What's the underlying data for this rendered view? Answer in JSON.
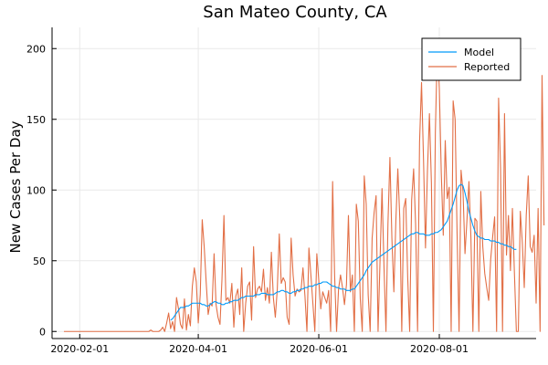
{
  "chart_data": {
    "type": "line",
    "title": "San Mateo County, CA",
    "xlabel": "",
    "ylabel": "New Cases Per Day",
    "x_start": "2020-01-24",
    "x_end": "2020-09-16",
    "xlim": [
      "2020-01-18",
      "2020-09-19"
    ],
    "ylim": [
      -5,
      215
    ],
    "xticks": [
      "2020-02-01",
      "2020-04-01",
      "2020-06-01",
      "2020-08-01"
    ],
    "yticks": [
      0,
      50,
      100,
      150,
      200
    ],
    "grid": true,
    "legend": "top-right",
    "series": [
      {
        "name": "Model",
        "color": "#009AFA",
        "x_start": "2020-03-18",
        "values": [
          8,
          9,
          11,
          13,
          15,
          17,
          17,
          17,
          18,
          18,
          19,
          20,
          20,
          20,
          20,
          20,
          19,
          19,
          18,
          18,
          19,
          20,
          21,
          21,
          20,
          20,
          19,
          19,
          20,
          20,
          21,
          21,
          22,
          22,
          22,
          23,
          24,
          24,
          25,
          25,
          25,
          25,
          25,
          26,
          26,
          26,
          27,
          27,
          27,
          26,
          26,
          26,
          26,
          27,
          28,
          28,
          29,
          29,
          28,
          28,
          27,
          27,
          28,
          28,
          29,
          29,
          30,
          30,
          31,
          31,
          32,
          32,
          32,
          33,
          33,
          34,
          34,
          35,
          35,
          35,
          34,
          33,
          32,
          32,
          31,
          31,
          30,
          30,
          30,
          29,
          29,
          29,
          30,
          30,
          32,
          34,
          36,
          38,
          40,
          43,
          45,
          47,
          49,
          50,
          51,
          52,
          53,
          54,
          55,
          56,
          57,
          58,
          59,
          60,
          61,
          62,
          63,
          64,
          65,
          66,
          67,
          68,
          69,
          69,
          70,
          70,
          69,
          69,
          69,
          68,
          68,
          68,
          69,
          69,
          70,
          70,
          71,
          72,
          74,
          76,
          78,
          82,
          86,
          90,
          95,
          100,
          103,
          104,
          103,
          98,
          92,
          85,
          80,
          75,
          71,
          68,
          67,
          66,
          66,
          65,
          65,
          65,
          64,
          64,
          64,
          63,
          63,
          62,
          62,
          61,
          61,
          60,
          60,
          59,
          58,
          58
        ]
      },
      {
        "name": "Reported",
        "color": "#E26F46",
        "values": [
          0,
          0,
          0,
          0,
          0,
          0,
          0,
          0,
          0,
          0,
          0,
          0,
          0,
          0,
          0,
          0,
          0,
          0,
          0,
          0,
          0,
          0,
          0,
          0,
          0,
          0,
          0,
          0,
          0,
          0,
          0,
          0,
          0,
          0,
          0,
          0,
          0,
          0,
          0,
          0,
          0,
          0,
          0,
          0,
          1,
          0,
          0,
          0,
          0,
          1,
          3,
          0,
          6,
          13,
          2,
          7,
          0,
          24,
          16,
          5,
          2,
          23,
          1,
          12,
          4,
          32,
          45,
          35,
          6,
          26,
          79,
          60,
          35,
          12,
          20,
          18,
          55,
          19,
          10,
          5,
          37,
          82,
          22,
          24,
          20,
          34,
          3,
          25,
          30,
          12,
          45,
          0,
          20,
          32,
          35,
          8,
          60,
          24,
          30,
          32,
          28,
          44,
          22,
          31,
          20,
          56,
          24,
          10,
          30,
          69,
          34,
          38,
          35,
          10,
          5,
          66,
          40,
          25,
          30,
          28,
          29,
          45,
          25,
          0,
          59,
          40,
          20,
          0,
          55,
          36,
          16,
          28,
          24,
          20,
          29,
          0,
          106,
          40,
          0,
          30,
          40,
          31,
          19,
          33,
          82,
          28,
          40,
          0,
          90,
          78,
          23,
          0,
          110,
          90,
          26,
          0,
          66,
          84,
          96,
          0,
          50,
          101,
          46,
          0,
          76,
          123,
          66,
          28,
          78,
          115,
          80,
          0,
          87,
          94,
          38,
          0,
          93,
          115,
          76,
          0,
          134,
          176,
          122,
          59,
          114,
          154,
          105,
          0,
          141,
          201,
          172,
          112,
          68,
          135,
          94,
          102,
          0,
          163,
          150,
          69,
          0,
          114,
          99,
          55,
          79,
          106,
          66,
          0,
          80,
          78,
          0,
          99,
          60,
          41,
          31,
          22,
          51,
          67,
          81,
          0,
          165,
          115,
          0,
          154,
          54,
          82,
          43,
          87,
          42,
          0,
          0,
          85,
          63,
          31,
          82,
          110,
          60,
          56,
          68,
          20,
          87,
          0,
          181,
          75
        ]
      }
    ]
  }
}
